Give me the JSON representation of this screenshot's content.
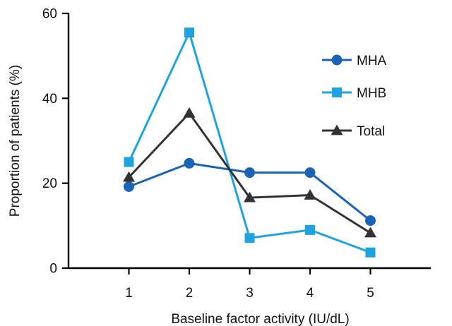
{
  "chart_data": {
    "type": "line",
    "title": "",
    "xlabel": "Baseline factor activity (IU/dL)",
    "ylabel": "Proportion of patients (%)",
    "x": [
      1,
      2,
      3,
      4,
      5
    ],
    "x_tick_labels": [
      "1",
      "2",
      "3",
      "4",
      "5"
    ],
    "xlim": [
      0,
      6
    ],
    "ylim": [
      0,
      60
    ],
    "y_ticks": [
      0,
      20,
      40,
      60
    ],
    "y_tick_labels": [
      "0",
      "20",
      "40",
      "60"
    ],
    "grid": false,
    "legend_position": "top-right",
    "series": [
      {
        "name": "MHA",
        "values": [
          19.2,
          24.7,
          22.5,
          22.5,
          11.2
        ],
        "color": "#1a63b5",
        "marker": "circle"
      },
      {
        "name": "MHB",
        "values": [
          25.0,
          55.5,
          7.1,
          9.0,
          3.7
        ],
        "color": "#1ea3df",
        "marker": "square"
      },
      {
        "name": "Total",
        "values": [
          21.4,
          36.5,
          16.6,
          17.2,
          8.3
        ],
        "color": "#333333",
        "marker": "triangle"
      }
    ]
  }
}
